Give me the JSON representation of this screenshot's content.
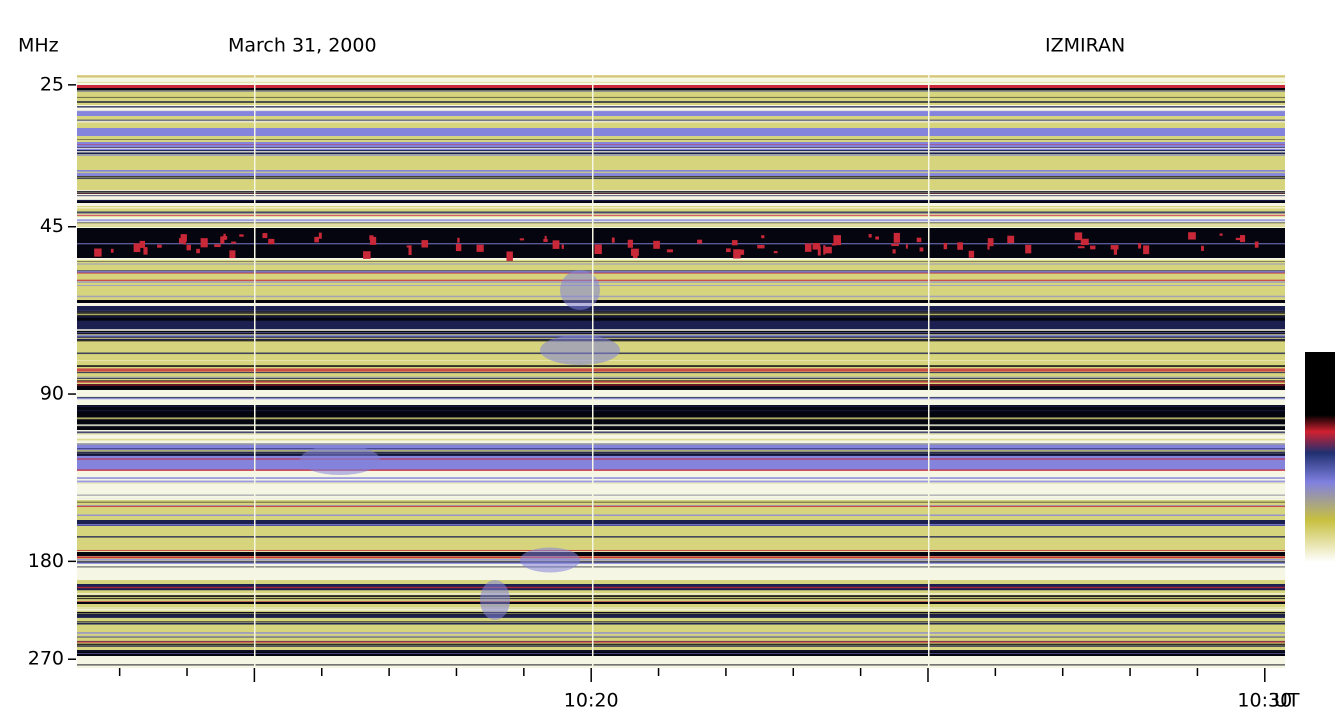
{
  "chart_data": {
    "type": "spectrogram",
    "title": "March 31, 2000",
    "source": "IZMIRAN",
    "ylabel": "MHz",
    "xlabel": "UT",
    "ylim": [
      24,
      280
    ],
    "ylog": true,
    "y_inverted": true,
    "yticks": [
      25,
      45,
      90,
      180,
      270
    ],
    "xlim": [
      "10:12:22",
      "10:30:18"
    ],
    "xticks": [
      "10:20",
      "10:30"
    ],
    "xminor_ticks": [
      "10:13",
      "10:14",
      "10:15",
      "10:16",
      "10:17",
      "10:18",
      "10:19",
      "10:20",
      "10:21",
      "10:22",
      "10:23",
      "10:24",
      "10:25",
      "10:26",
      "10:27",
      "10:28",
      "10:29",
      "10:30"
    ]
  }
}
